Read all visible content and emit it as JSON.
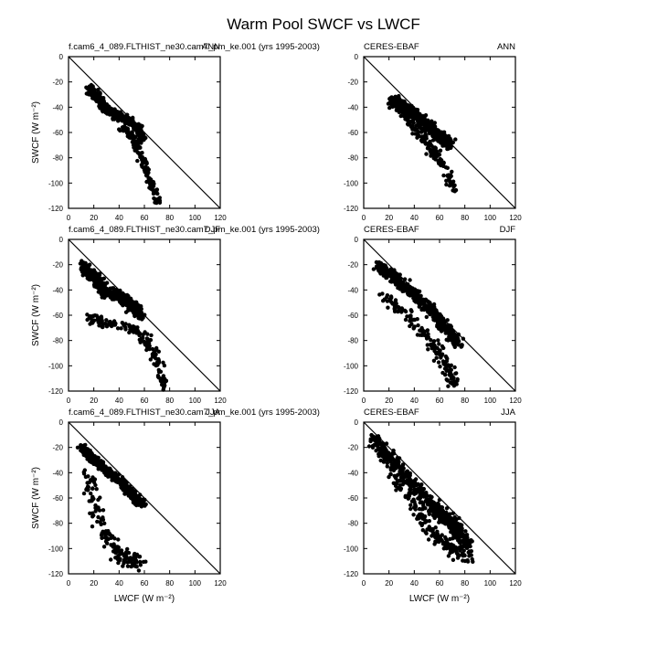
{
  "figure": {
    "title": "Warm Pool SWCF vs LWCF"
  },
  "chart_data": [
    {
      "type": "scatter",
      "left_label": "f.cam6_4_089.FLTHIST_ne30.cam7_pm_ke.001 (yrs 1995-2003)",
      "right_label": "ANN",
      "xlabel": "",
      "ylabel": "SWCF (W m⁻²)",
      "xlim": [
        0,
        120
      ],
      "ylim": [
        -120,
        0
      ],
      "xticks": [
        0,
        20,
        40,
        60,
        80,
        100,
        120
      ],
      "yticks": [
        0,
        -20,
        -40,
        -60,
        -80,
        -100,
        -120
      ],
      "reference_line": {
        "x": [
          0,
          120
        ],
        "y": [
          0,
          -120
        ]
      },
      "cloud": {
        "ridge": [
          [
            17,
            -26
          ],
          [
            22,
            -32
          ],
          [
            30,
            -41
          ],
          [
            40,
            -47
          ],
          [
            48,
            -51
          ],
          [
            55,
            -57
          ],
          [
            58,
            -65
          ]
        ],
        "ridge_spread": 3,
        "tail": [
          [
            42,
            -56
          ],
          [
            50,
            -62
          ],
          [
            55,
            -72
          ],
          [
            60,
            -85
          ],
          [
            64,
            -97
          ],
          [
            68,
            -108
          ],
          [
            71,
            -114
          ]
        ],
        "tail_spread": 3
      }
    },
    {
      "type": "scatter",
      "left_label": "CERES-EBAF",
      "right_label": "ANN",
      "xlabel": "",
      "ylabel": "",
      "xlim": [
        0,
        120
      ],
      "ylim": [
        -120,
        0
      ],
      "xticks": [
        0,
        20,
        40,
        60,
        80,
        100,
        120
      ],
      "yticks": [
        0,
        -20,
        -40,
        -60,
        -80,
        -100,
        -120
      ],
      "reference_line": {
        "x": [
          0,
          120
        ],
        "y": [
          0,
          -120
        ]
      },
      "cloud": {
        "ridge": [
          [
            22,
            -35
          ],
          [
            30,
            -38
          ],
          [
            40,
            -45
          ],
          [
            50,
            -55
          ],
          [
            60,
            -63
          ],
          [
            68,
            -70
          ]
        ],
        "ridge_spread": 4,
        "tail": [
          [
            30,
            -42
          ],
          [
            40,
            -55
          ],
          [
            50,
            -68
          ],
          [
            58,
            -80
          ],
          [
            66,
            -92
          ],
          [
            70,
            -104
          ]
        ],
        "tail_spread": 4
      }
    },
    {
      "type": "scatter",
      "left_label": "f.cam6_4_089.FLTHIST_ne30.cam7_pm_ke.001 (yrs 1995-2003)",
      "right_label": "DJF",
      "xlabel": "",
      "ylabel": "SWCF (W m⁻²)",
      "xlim": [
        0,
        120
      ],
      "ylim": [
        -120,
        0
      ],
      "xticks": [
        0,
        20,
        40,
        60,
        80,
        100,
        120
      ],
      "yticks": [
        0,
        -20,
        -40,
        -60,
        -80,
        -100,
        -120
      ],
      "reference_line": {
        "x": [
          0,
          120
        ],
        "y": [
          0,
          -120
        ]
      },
      "cloud": {
        "ridge": [
          [
            12,
            -22
          ],
          [
            20,
            -30
          ],
          [
            30,
            -42
          ],
          [
            40,
            -44
          ],
          [
            50,
            -52
          ],
          [
            57,
            -60
          ]
        ],
        "ridge_spread": 4,
        "tail": [
          [
            15,
            -60
          ],
          [
            25,
            -65
          ],
          [
            40,
            -68
          ],
          [
            55,
            -72
          ],
          [
            65,
            -85
          ],
          [
            72,
            -100
          ],
          [
            76,
            -117
          ]
        ],
        "tail_spread": 4
      }
    },
    {
      "type": "scatter",
      "left_label": "CERES-EBAF",
      "right_label": "DJF",
      "xlabel": "",
      "ylabel": "",
      "xlim": [
        0,
        120
      ],
      "ylim": [
        -120,
        0
      ],
      "xticks": [
        0,
        20,
        40,
        60,
        80,
        100,
        120
      ],
      "yticks": [
        0,
        -20,
        -40,
        -60,
        -80,
        -100,
        -120
      ],
      "reference_line": {
        "x": [
          0,
          120
        ],
        "y": [
          0,
          -120
        ]
      },
      "cloud": {
        "ridge": [
          [
            12,
            -22
          ],
          [
            25,
            -30
          ],
          [
            40,
            -44
          ],
          [
            55,
            -58
          ],
          [
            65,
            -70
          ],
          [
            75,
            -82
          ]
        ],
        "ridge_spread": 4,
        "tail": [
          [
            15,
            -45
          ],
          [
            30,
            -55
          ],
          [
            45,
            -70
          ],
          [
            55,
            -82
          ],
          [
            62,
            -95
          ],
          [
            68,
            -105
          ],
          [
            72,
            -118
          ]
        ],
        "tail_spread": 5
      }
    },
    {
      "type": "scatter",
      "left_label": "f.cam6_4_089.FLTHIST_ne30.cam7_pm_ke.001 (yrs 1995-2003)",
      "right_label": "JJA",
      "xlabel": "LWCF (W m⁻²)",
      "ylabel": "SWCF (W m⁻²)",
      "xlim": [
        0,
        120
      ],
      "ylim": [
        -120,
        0
      ],
      "xticks": [
        0,
        20,
        40,
        60,
        80,
        100,
        120
      ],
      "yticks": [
        0,
        -20,
        -40,
        -60,
        -80,
        -100,
        -120
      ],
      "reference_line": {
        "x": [
          0,
          120
        ],
        "y": [
          0,
          -120
        ]
      },
      "cloud": {
        "ridge": [
          [
            10,
            -19
          ],
          [
            20,
            -30
          ],
          [
            30,
            -38
          ],
          [
            40,
            -46
          ],
          [
            50,
            -57
          ],
          [
            58,
            -65
          ]
        ],
        "ridge_spread": 3,
        "tail": [
          [
            15,
            -40
          ],
          [
            20,
            -60
          ],
          [
            25,
            -80
          ],
          [
            32,
            -95
          ],
          [
            40,
            -105
          ],
          [
            50,
            -108
          ],
          [
            56,
            -110
          ]
        ],
        "tail_spread": 6
      }
    },
    {
      "type": "scatter",
      "left_label": "CERES-EBAF",
      "right_label": "JJA",
      "xlabel": "LWCF (W m⁻²)",
      "ylabel": "",
      "xlim": [
        0,
        120
      ],
      "ylim": [
        -120,
        0
      ],
      "xticks": [
        0,
        20,
        40,
        60,
        80,
        100,
        120
      ],
      "yticks": [
        0,
        -20,
        -40,
        -60,
        -80,
        -100,
        -120
      ],
      "reference_line": {
        "x": [
          0,
          120
        ],
        "y": [
          0,
          -120
        ]
      },
      "cloud": {
        "ridge": [
          [
            8,
            -12
          ],
          [
            20,
            -28
          ],
          [
            35,
            -45
          ],
          [
            50,
            -62
          ],
          [
            60,
            -72
          ],
          [
            72,
            -82
          ],
          [
            82,
            -97
          ]
        ],
        "ridge_spread": 5,
        "tail": [
          [
            20,
            -40
          ],
          [
            35,
            -58
          ],
          [
            45,
            -75
          ],
          [
            55,
            -88
          ],
          [
            65,
            -95
          ],
          [
            75,
            -103
          ],
          [
            85,
            -108
          ]
        ],
        "tail_spread": 5
      }
    }
  ]
}
